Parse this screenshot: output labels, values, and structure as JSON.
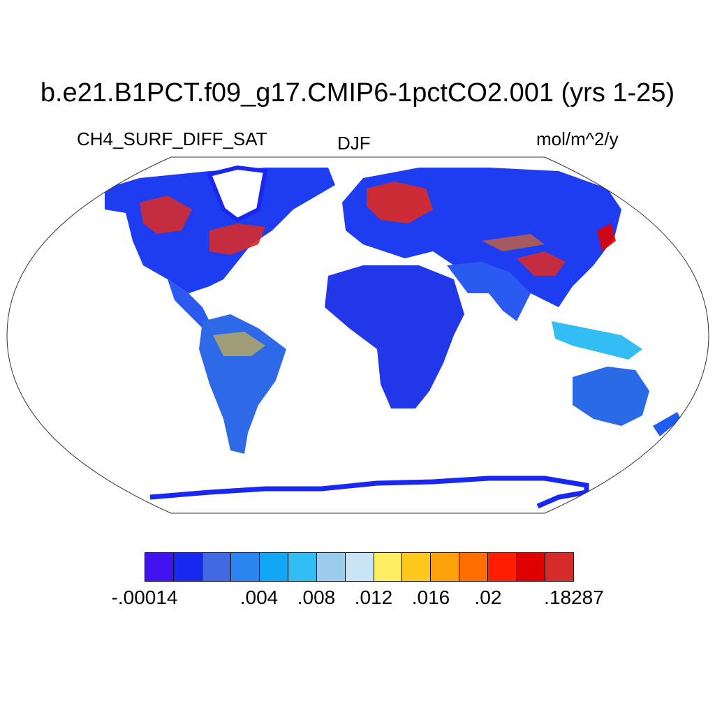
{
  "title": "b.e21.B1PCT.f09_g17.CMIP6-1pctCO2.001 (yrs 1-25)",
  "left_label": "CH4_SURF_DIFF_SAT",
  "center_label": "DJF",
  "right_label": "mol/m^2/y",
  "projection": "robinson",
  "colorbar": {
    "colors": [
      "#4212f0",
      "#1928f0",
      "#4169e1",
      "#2a85f0",
      "#10a5f5",
      "#33bdf5",
      "#9acdec",
      "#c9e4f5",
      "#ffed63",
      "#ffc81e",
      "#ffa10a",
      "#ff6e00",
      "#ff1f00",
      "#e00000",
      "#d62b2b"
    ],
    "tick_labels": [
      "-.00014",
      ".004",
      ".008",
      ".012",
      ".016",
      ".02",
      ".18287"
    ]
  }
}
